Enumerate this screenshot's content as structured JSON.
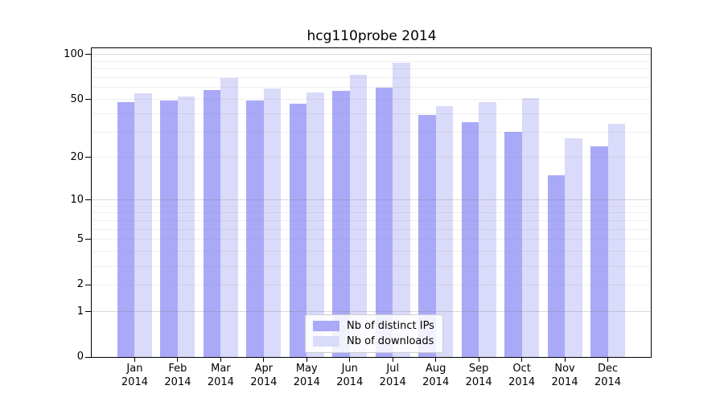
{
  "chart_data": {
    "type": "bar",
    "title": "hcg110probe 2014",
    "year_label": "2014",
    "categories": [
      "Jan",
      "Feb",
      "Mar",
      "Apr",
      "May",
      "Jun",
      "Jul",
      "Aug",
      "Sep",
      "Oct",
      "Nov",
      "Dec"
    ],
    "series": [
      {
        "name": "Nb of distinct IPs",
        "color": "#a9a9f8",
        "values": [
          48,
          49,
          58,
          49,
          47,
          57,
          60,
          39,
          35,
          30,
          15,
          24
        ]
      },
      {
        "name": "Nb of downloads",
        "color": "#dadafa",
        "values": [
          55,
          52,
          70,
          59,
          56,
          73,
          88,
          45,
          48,
          51,
          27,
          34
        ]
      }
    ],
    "xlabel": "",
    "ylabel": "",
    "yticks": [
      0,
      1,
      2,
      5,
      10,
      20,
      50,
      100
    ],
    "ylim": [
      0,
      113
    ],
    "yscale": "log1p",
    "grid": {
      "on": true,
      "major": [
        1,
        10,
        100
      ],
      "minor": [
        2,
        3,
        4,
        5,
        6,
        7,
        8,
        9,
        20,
        30,
        40,
        50,
        60,
        70,
        80,
        90
      ]
    },
    "legend_position": "lower-center"
  }
}
